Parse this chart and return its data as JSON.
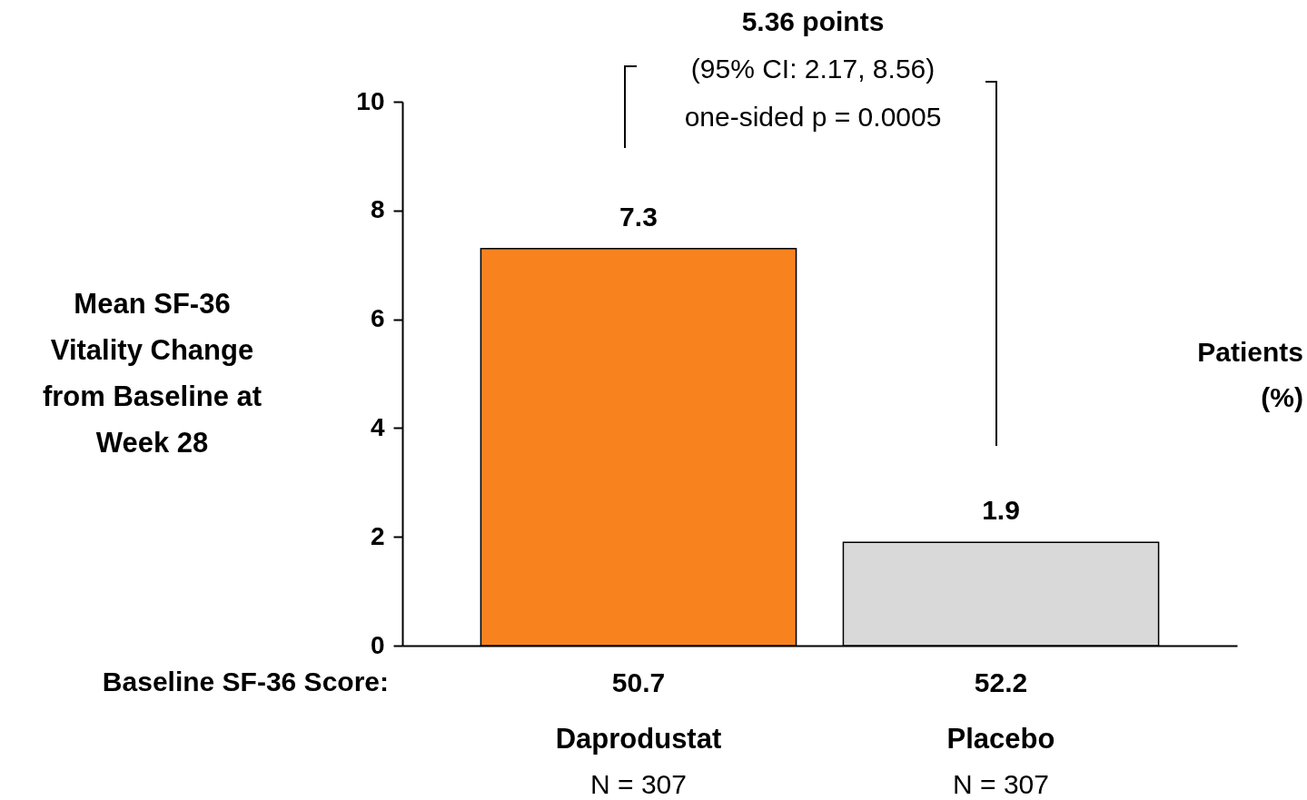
{
  "chart_data": {
    "type": "bar",
    "ylabel": "Mean SF-36 Vitality Change from Baseline at Week 28",
    "categories": [
      "Daprodustat",
      "Placebo"
    ],
    "values": [
      7.3,
      1.9
    ],
    "colors": [
      "#f7821e",
      "#d9d9d9"
    ],
    "ylim": [
      0,
      10
    ],
    "yticks": [
      0,
      2,
      4,
      6,
      8,
      10
    ],
    "grid": false,
    "data_labels": true,
    "annotations": [
      "Baseline SF-36 Score:",
      "5.36 points",
      "(95% CI: 2.17, 8.56)",
      "one-sided p = 0.0005",
      "Patients (%)",
      "50.7",
      "52.2",
      "N = 307",
      "N = 307"
    ]
  }
}
